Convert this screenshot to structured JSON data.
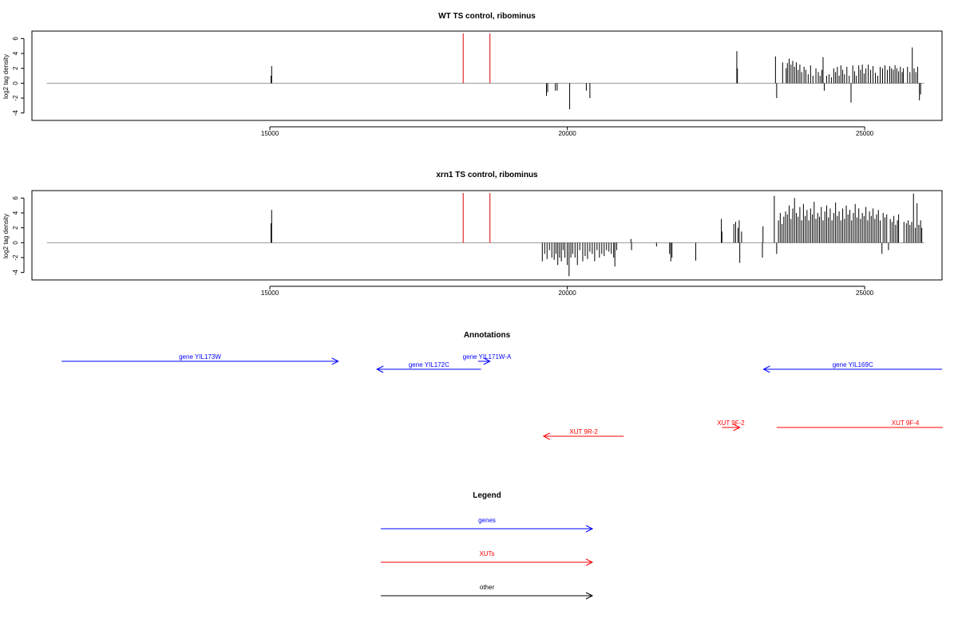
{
  "colors": {
    "gene": "#0000ff",
    "xut": "#ff0000",
    "other": "#000000",
    "marker": "#dd0000",
    "baseline": "#999999",
    "frame": "#000000"
  },
  "chart_data": [
    {
      "type": "bar",
      "title": "WT TS control, ribominus",
      "ylabel": "log2 tag density",
      "xlim": [
        11000,
        26300
      ],
      "ylim": [
        -5,
        7
      ],
      "xticks": [
        {
          "v": 15000,
          "label": "15000"
        },
        {
          "v": 20000,
          "label": "20000"
        },
        {
          "v": 25000,
          "label": "25000"
        }
      ],
      "yticks": [
        {
          "v": -4,
          "label": "-4"
        },
        {
          "v": -2,
          "label": "-2"
        },
        {
          "v": 0,
          "label": "0"
        },
        {
          "v": 2,
          "label": "2"
        },
        {
          "v": 4,
          "label": "4"
        },
        {
          "v": 6,
          "label": "6"
        }
      ],
      "baseline": [
        11250,
        26000
      ],
      "markers": [
        18250,
        18700
      ],
      "values": [
        [
          15020,
          1.0
        ],
        [
          15030,
          2.3
        ],
        [
          19650,
          -1.7
        ],
        [
          19670,
          -1.2
        ],
        [
          19800,
          -1.0
        ],
        [
          19830,
          -1.0
        ],
        [
          20040,
          -3.5
        ],
        [
          20320,
          -1.0
        ],
        [
          20380,
          -2.0
        ],
        [
          22850,
          4.3
        ],
        [
          22860,
          2.0
        ],
        [
          23500,
          3.6
        ],
        [
          23520,
          -2.0
        ],
        [
          23620,
          2.8
        ],
        [
          23680,
          2.0
        ],
        [
          23700,
          2.7
        ],
        [
          23730,
          3.3
        ],
        [
          23760,
          2.5
        ],
        [
          23790,
          3.0
        ],
        [
          23820,
          2.2
        ],
        [
          23850,
          2.8
        ],
        [
          23880,
          1.8
        ],
        [
          23910,
          2.5
        ],
        [
          23940,
          1.5
        ],
        [
          23980,
          2.2
        ],
        [
          24010,
          1.8
        ],
        [
          24050,
          1.2
        ],
        [
          24090,
          2.4
        ],
        [
          24130,
          1.0
        ],
        [
          24180,
          2.0
        ],
        [
          24220,
          1.5
        ],
        [
          24250,
          1.0
        ],
        [
          24280,
          1.8
        ],
        [
          24300,
          3.5
        ],
        [
          24320,
          -1.0
        ],
        [
          24360,
          1.0
        ],
        [
          24400,
          1.2
        ],
        [
          24440,
          0.8
        ],
        [
          24480,
          2.0
        ],
        [
          24510,
          1.5
        ],
        [
          24540,
          2.2
        ],
        [
          24570,
          1.0
        ],
        [
          24600,
          2.4
        ],
        [
          24630,
          1.8
        ],
        [
          24660,
          1.2
        ],
        [
          24700,
          2.2
        ],
        [
          24740,
          1.0
        ],
        [
          24770,
          -2.6
        ],
        [
          24800,
          2.4
        ],
        [
          24830,
          1.6
        ],
        [
          24860,
          1.0
        ],
        [
          24900,
          2.4
        ],
        [
          24930,
          1.8
        ],
        [
          24960,
          2.5
        ],
        [
          24990,
          1.3
        ],
        [
          25020,
          2.0
        ],
        [
          25060,
          2.5
        ],
        [
          25100,
          1.8
        ],
        [
          25140,
          2.3
        ],
        [
          25180,
          1.4
        ],
        [
          25220,
          1.0
        ],
        [
          25260,
          2.2
        ],
        [
          25300,
          2.0
        ],
        [
          25340,
          2.4
        ],
        [
          25380,
          1.8
        ],
        [
          25420,
          2.3
        ],
        [
          25450,
          2.0
        ],
        [
          25480,
          1.8
        ],
        [
          25510,
          2.4
        ],
        [
          25540,
          2.0
        ],
        [
          25570,
          1.6
        ],
        [
          25600,
          2.2
        ],
        [
          25630,
          1.5
        ],
        [
          25650,
          2.0
        ],
        [
          25720,
          2.2
        ],
        [
          25760,
          1.5
        ],
        [
          25800,
          4.8
        ],
        [
          25830,
          2.0
        ],
        [
          25860,
          1.5
        ],
        [
          25890,
          2.2
        ],
        [
          25920,
          -2.3
        ],
        [
          25940,
          -1.5
        ]
      ]
    },
    {
      "type": "bar",
      "title": "xrn1 TS control, ribominus",
      "ylabel": "log2 tag density",
      "xlim": [
        11000,
        26300
      ],
      "ylim": [
        -5,
        7
      ],
      "xticks": [
        {
          "v": 15000,
          "label": "15000"
        },
        {
          "v": 20000,
          "label": "20000"
        },
        {
          "v": 25000,
          "label": "25000"
        }
      ],
      "yticks": [
        {
          "v": -4,
          "label": "-4"
        },
        {
          "v": -2,
          "label": "-2"
        },
        {
          "v": 0,
          "label": "0"
        },
        {
          "v": 2,
          "label": "2"
        },
        {
          "v": 4,
          "label": "4"
        },
        {
          "v": 6,
          "label": "6"
        }
      ],
      "baseline": [
        11250,
        26000
      ],
      "markers": [
        18250,
        18700
      ],
      "values": [
        [
          15020,
          2.6
        ],
        [
          15030,
          4.4
        ],
        [
          19580,
          -2.5
        ],
        [
          19620,
          -1.5
        ],
        [
          19660,
          -2.2
        ],
        [
          19700,
          -1.0
        ],
        [
          19740,
          -2.0
        ],
        [
          19780,
          -2.3
        ],
        [
          19810,
          -1.5
        ],
        [
          19840,
          -3.0
        ],
        [
          19870,
          -2.0
        ],
        [
          19900,
          -2.5
        ],
        [
          19930,
          -1.0
        ],
        [
          19960,
          -2.0
        ],
        [
          20000,
          -3.0
        ],
        [
          20030,
          -4.5
        ],
        [
          20060,
          -2.0
        ],
        [
          20090,
          -1.5
        ],
        [
          20130,
          -2.0
        ],
        [
          20170,
          -3.0
        ],
        [
          20210,
          -1.0
        ],
        [
          20260,
          -2.5
        ],
        [
          20300,
          -1.8
        ],
        [
          20340,
          -2.2
        ],
        [
          20380,
          -1.2
        ],
        [
          20420,
          -1.5
        ],
        [
          20460,
          -2.5
        ],
        [
          20500,
          -1.0
        ],
        [
          20540,
          -2.0
        ],
        [
          20580,
          -1.5
        ],
        [
          20620,
          -1.8
        ],
        [
          20660,
          -1.0
        ],
        [
          20700,
          -1.2
        ],
        [
          20740,
          -1.5
        ],
        [
          20780,
          -2.0
        ],
        [
          20800,
          -3.2
        ],
        [
          20830,
          -1.0
        ],
        [
          21070,
          0.5
        ],
        [
          21080,
          -1.0
        ],
        [
          21500,
          -0.5
        ],
        [
          21720,
          -1.5
        ],
        [
          21740,
          -2.5
        ],
        [
          21760,
          -2.0
        ],
        [
          22160,
          -2.4
        ],
        [
          22590,
          3.2
        ],
        [
          22600,
          1.5
        ],
        [
          22800,
          2.5
        ],
        [
          22830,
          2.8
        ],
        [
          22870,
          2.0
        ],
        [
          22890,
          3.0
        ],
        [
          22900,
          -2.7
        ],
        [
          22930,
          1.5
        ],
        [
          23280,
          -2.0
        ],
        [
          23290,
          2.2
        ],
        [
          23480,
          6.3
        ],
        [
          23520,
          -1.5
        ],
        [
          23550,
          3.0
        ],
        [
          23580,
          4.0
        ],
        [
          23610,
          2.5
        ],
        [
          23640,
          3.5
        ],
        [
          23670,
          4.2
        ],
        [
          23700,
          3.8
        ],
        [
          23730,
          5.0
        ],
        [
          23760,
          3.2
        ],
        [
          23790,
          4.6
        ],
        [
          23820,
          6.0
        ],
        [
          23850,
          4.0
        ],
        [
          23880,
          3.5
        ],
        [
          23910,
          4.8
        ],
        [
          23940,
          3.0
        ],
        [
          23970,
          5.2
        ],
        [
          24000,
          3.6
        ],
        [
          24030,
          4.4
        ],
        [
          24060,
          3.0
        ],
        [
          24090,
          4.6
        ],
        [
          24120,
          3.8
        ],
        [
          24150,
          5.5
        ],
        [
          24180,
          3.2
        ],
        [
          24210,
          4.0
        ],
        [
          24240,
          3.5
        ],
        [
          24270,
          4.8
        ],
        [
          24300,
          3.0
        ],
        [
          24330,
          4.2
        ],
        [
          24360,
          5.0
        ],
        [
          24390,
          3.4
        ],
        [
          24420,
          4.6
        ],
        [
          24450,
          3.0
        ],
        [
          24480,
          4.0
        ],
        [
          24510,
          5.4
        ],
        [
          24540,
          3.6
        ],
        [
          24570,
          4.2
        ],
        [
          24600,
          3.0
        ],
        [
          24630,
          4.6
        ],
        [
          24660,
          3.2
        ],
        [
          24690,
          5.0
        ],
        [
          24720,
          3.8
        ],
        [
          24750,
          4.4
        ],
        [
          24780,
          3.0
        ],
        [
          24810,
          4.0
        ],
        [
          24840,
          5.2
        ],
        [
          24870,
          3.4
        ],
        [
          24900,
          4.6
        ],
        [
          24930,
          3.2
        ],
        [
          24960,
          4.0
        ],
        [
          24990,
          3.6
        ],
        [
          25020,
          4.8
        ],
        [
          25050,
          3.0
        ],
        [
          25080,
          4.2
        ],
        [
          25110,
          3.6
        ],
        [
          25140,
          4.6
        ],
        [
          25170,
          3.2
        ],
        [
          25200,
          3.8
        ],
        [
          25230,
          4.4
        ],
        [
          25260,
          3.0
        ],
        [
          25290,
          -1.5
        ],
        [
          25310,
          4.0
        ],
        [
          25340,
          3.4
        ],
        [
          25370,
          3.8
        ],
        [
          25400,
          -1.0
        ],
        [
          25430,
          3.2
        ],
        [
          25460,
          2.8
        ],
        [
          25490,
          3.6
        ],
        [
          25520,
          2.4
        ],
        [
          25550,
          3.0
        ],
        [
          25570,
          3.8
        ],
        [
          25660,
          2.8
        ],
        [
          25700,
          2.6
        ],
        [
          25730,
          3.0
        ],
        [
          25760,
          2.4
        ],
        [
          25790,
          2.8
        ],
        [
          25820,
          6.6
        ],
        [
          25850,
          2.0
        ],
        [
          25880,
          5.3
        ],
        [
          25910,
          2.4
        ],
        [
          25940,
          3.0
        ],
        [
          25960,
          2.0
        ]
      ]
    }
  ],
  "annotations": {
    "title": "Annotations",
    "items": [
      {
        "label": "gene YIL173W",
        "x1": 11500,
        "x2": 16150,
        "dir": "right",
        "type": "gene",
        "row": 0
      },
      {
        "label": "gene YIL172C",
        "x1": 16800,
        "x2": 18550,
        "dir": "left",
        "type": "gene",
        "row": 1
      },
      {
        "label": "gene YIL171W-A",
        "x1": 18500,
        "x2": 18700,
        "dir": "right",
        "type": "gene",
        "row": 0
      },
      {
        "label": "gene YIL169C",
        "x1": 23300,
        "x2": 26300,
        "dir": "left",
        "type": "gene",
        "row": 1
      },
      {
        "label": "XUT 9R-2",
        "x1": 19600,
        "x2": 20950,
        "dir": "left",
        "type": "xut",
        "row": 3
      },
      {
        "label": "XUT 9F-2",
        "x1": 22600,
        "x2": 22900,
        "dir": "right",
        "type": "xut",
        "row": 2
      },
      {
        "label": "XUT 9F-4",
        "x1": 23520,
        "x2": 26800,
        "dir": "none",
        "type": "xut",
        "row": 2
      }
    ]
  },
  "legend": {
    "title": "Legend",
    "items": [
      {
        "label": "genes",
        "type": "gene"
      },
      {
        "label": "XUTs",
        "type": "xut"
      },
      {
        "label": "other",
        "type": "other"
      }
    ]
  }
}
